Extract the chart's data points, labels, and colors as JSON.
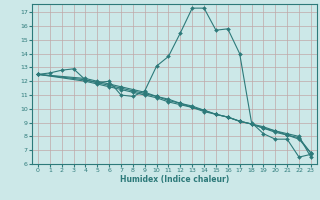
{
  "xlabel": "Humidex (Indice chaleur)",
  "bg_color": "#cce8e8",
  "line_color": "#2d7a7a",
  "grid_color_major": "#c0a8a8",
  "grid_color_minor": "#d4bcbc",
  "xlim": [
    -0.5,
    23.5
  ],
  "ylim": [
    6,
    17.6
  ],
  "yticks": [
    6,
    7,
    8,
    9,
    10,
    11,
    12,
    13,
    14,
    15,
    16,
    17
  ],
  "xticks": [
    0,
    1,
    2,
    3,
    4,
    5,
    6,
    7,
    8,
    9,
    10,
    11,
    12,
    13,
    14,
    15,
    16,
    17,
    18,
    19,
    20,
    21,
    22,
    23
  ],
  "series": [
    {
      "x": [
        0,
        1,
        2,
        3,
        4,
        5,
        6,
        7,
        8,
        9,
        10,
        11,
        12,
        13,
        14,
        15,
        16,
        17,
        18,
        19,
        20,
        21,
        22,
        23
      ],
      "y": [
        12.5,
        12.6,
        12.8,
        12.9,
        12.1,
        11.9,
        12.0,
        11.0,
        10.9,
        11.3,
        13.1,
        13.8,
        15.5,
        17.3,
        17.3,
        15.7,
        15.8,
        14.0,
        9.0,
        8.2,
        7.8,
        7.8,
        6.5,
        6.7
      ]
    },
    {
      "x": [
        0,
        4,
        5,
        6,
        7,
        8,
        9,
        10,
        11,
        12,
        13,
        14,
        15,
        16,
        17,
        18,
        19,
        20,
        21,
        22,
        23
      ],
      "y": [
        12.5,
        12.0,
        11.8,
        11.6,
        11.4,
        11.2,
        11.0,
        10.8,
        10.5,
        10.3,
        10.1,
        9.8,
        9.6,
        9.4,
        9.1,
        8.9,
        8.7,
        8.4,
        8.2,
        8.0,
        6.5
      ]
    },
    {
      "x": [
        0,
        4,
        5,
        6,
        7,
        8,
        9,
        10,
        11,
        12,
        13,
        14,
        15,
        16,
        17,
        18,
        19,
        20,
        21,
        22,
        23
      ],
      "y": [
        12.5,
        12.1,
        11.9,
        11.7,
        11.5,
        11.3,
        11.1,
        10.9,
        10.6,
        10.4,
        10.1,
        9.9,
        9.6,
        9.4,
        9.1,
        8.9,
        8.6,
        8.4,
        8.1,
        7.9,
        6.8
      ]
    },
    {
      "x": [
        0,
        4,
        5,
        6,
        7,
        8,
        9,
        10,
        11,
        12,
        13,
        14,
        15,
        16,
        17,
        18,
        19,
        20,
        21,
        22,
        23
      ],
      "y": [
        12.5,
        12.2,
        12.0,
        11.8,
        11.6,
        11.4,
        11.2,
        10.9,
        10.7,
        10.4,
        10.2,
        9.9,
        9.6,
        9.4,
        9.1,
        8.9,
        8.6,
        8.3,
        8.1,
        7.8,
        6.8
      ]
    }
  ]
}
